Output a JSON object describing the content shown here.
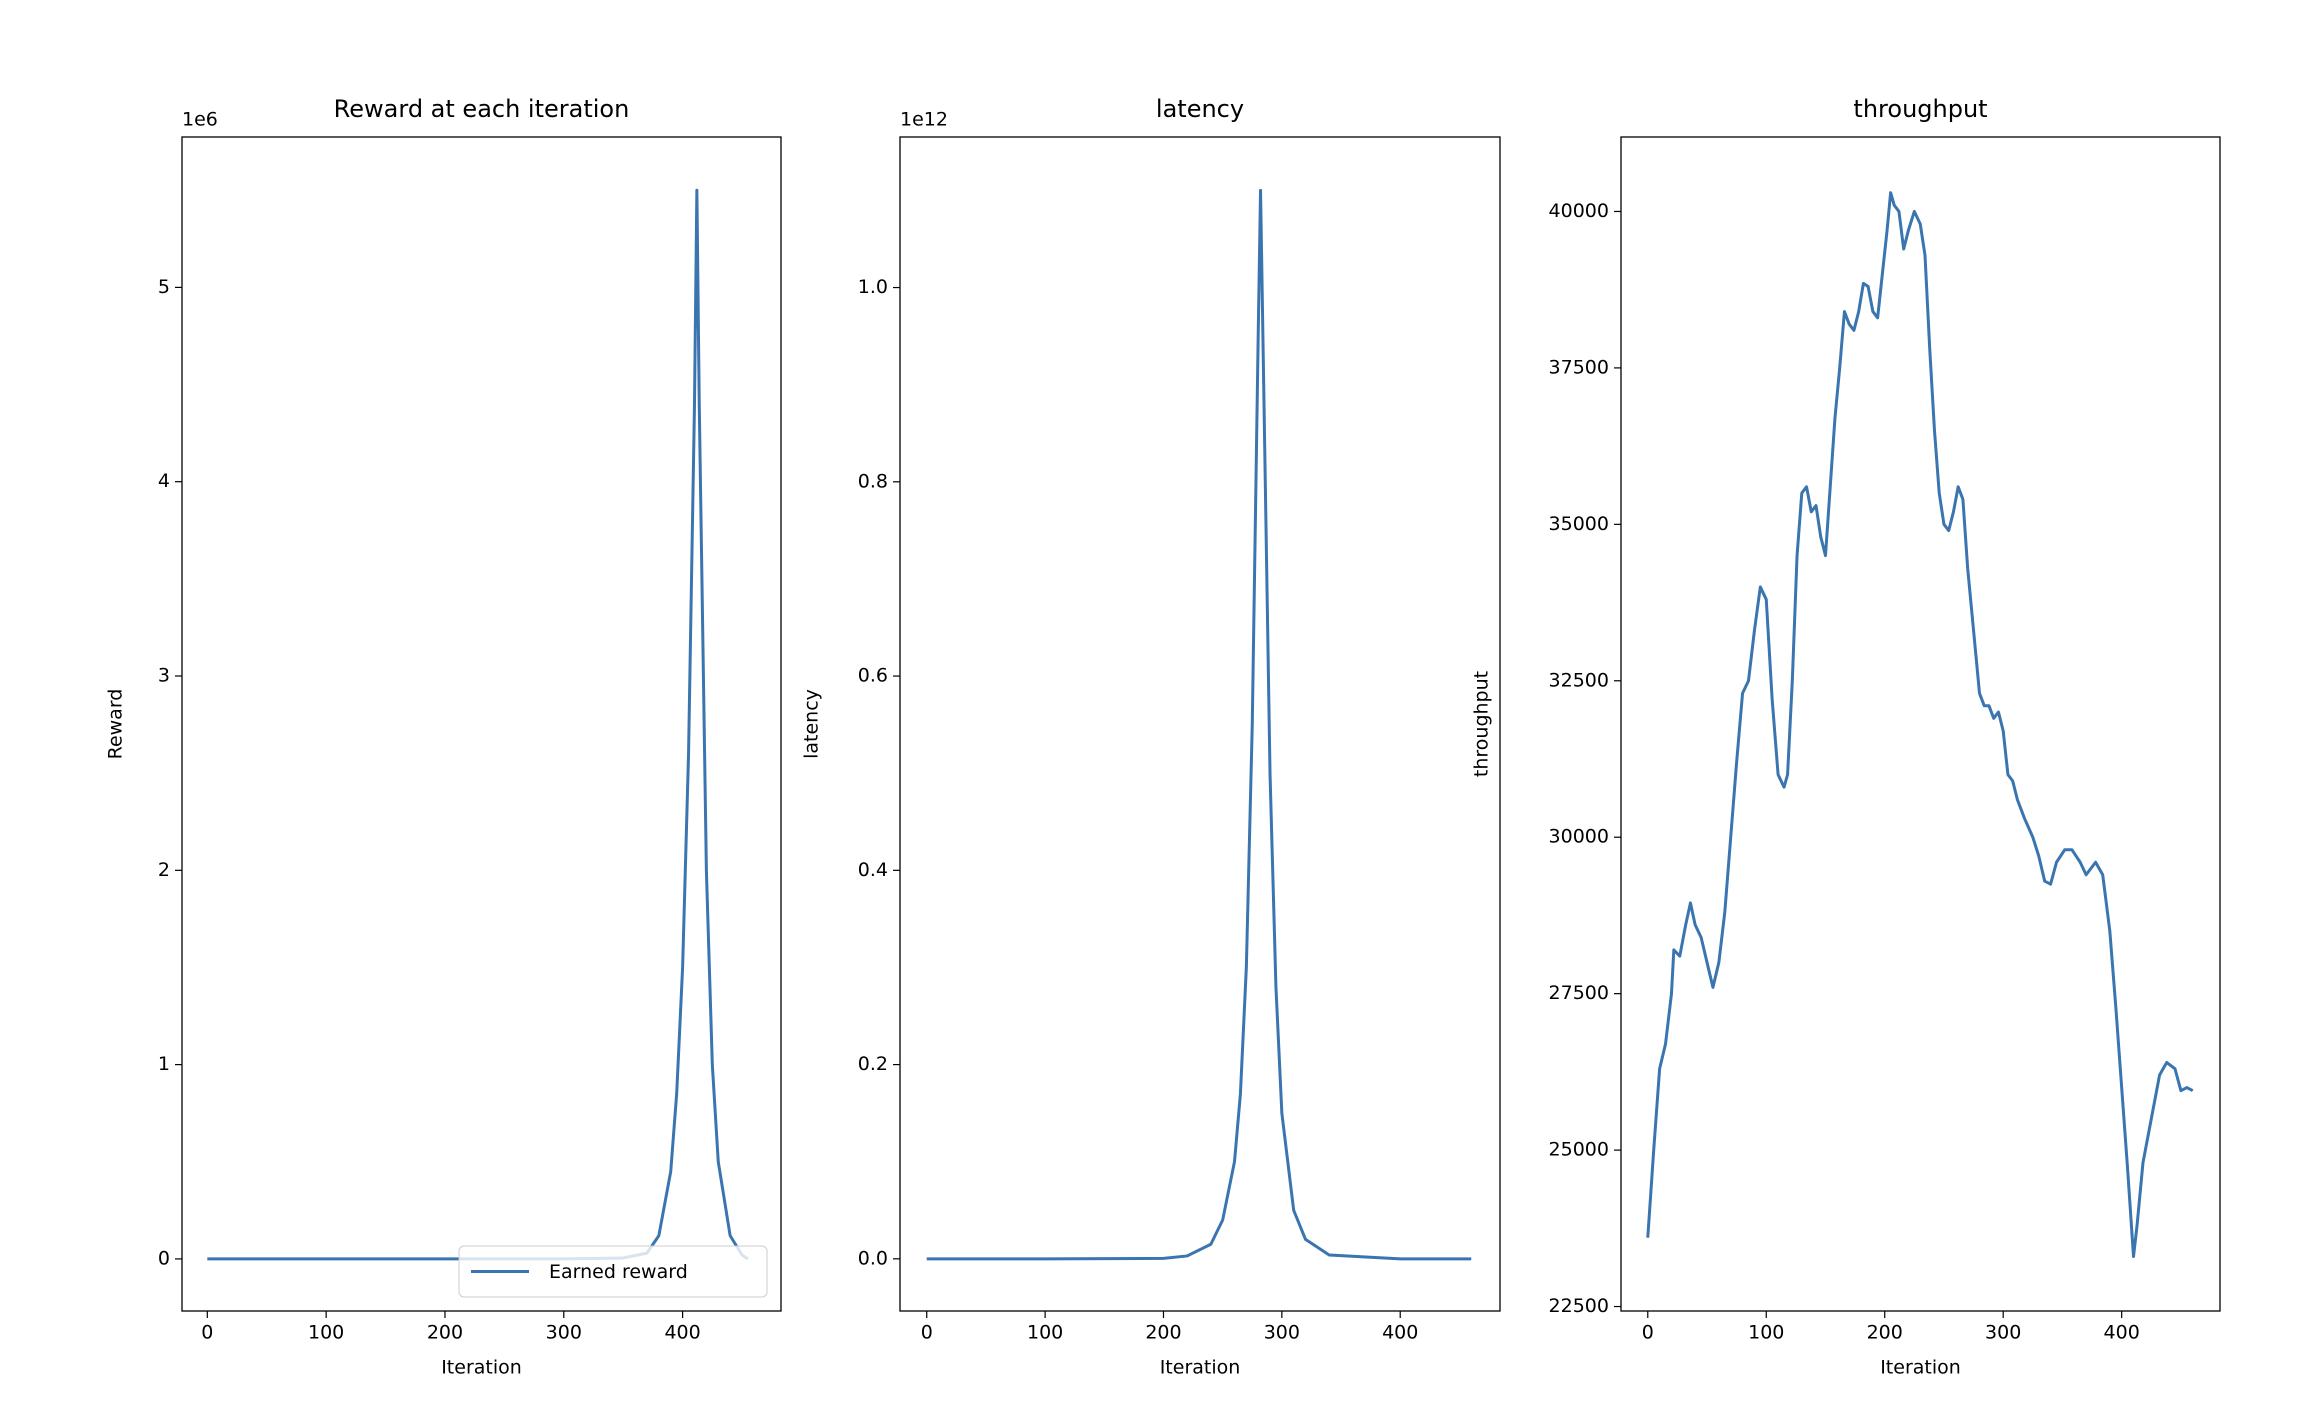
{
  "chart_data": [
    {
      "type": "line",
      "title": "Reward at each iteration",
      "xlabel": "Iteration",
      "ylabel": "Reward",
      "y_offset_label": "1e6",
      "x": [
        0,
        50,
        100,
        150,
        200,
        250,
        300,
        350,
        370,
        380,
        390,
        395,
        400,
        405,
        410,
        412,
        414,
        420,
        425,
        430,
        440,
        450,
        455
      ],
      "series": [
        {
          "name": "Earned reward",
          "color": "#3a75b0",
          "values": [
            0,
            0,
            0,
            0,
            0,
            0,
            0,
            0.005,
            0.03,
            0.12,
            0.45,
            0.85,
            1.5,
            2.6,
            4.4,
            5.5,
            4.4,
            2.0,
            1.0,
            0.5,
            0.12,
            0.02,
            0.0
          ]
        }
      ],
      "xlim": [
        -21.3,
        482.8
      ],
      "xticks": [
        0,
        100,
        200,
        300,
        400
      ],
      "ylim": [
        -0.268,
        5.774
      ],
      "yticks": [
        0,
        1,
        2,
        3,
        4,
        5
      ],
      "legend": "lower right"
    },
    {
      "type": "line",
      "title": "latency",
      "xlabel": "Iteration",
      "ylabel": "latency",
      "y_offset_label": "1e12",
      "color": "#3a75b0",
      "x": [
        0,
        100,
        200,
        220,
        240,
        250,
        260,
        265,
        270,
        275,
        280,
        282,
        284,
        290,
        295,
        300,
        310,
        320,
        340,
        400,
        460
      ],
      "values": [
        0,
        0,
        0.0005,
        0.003,
        0.015,
        0.04,
        0.1,
        0.17,
        0.3,
        0.55,
        0.95,
        1.1,
        0.95,
        0.5,
        0.28,
        0.15,
        0.05,
        0.02,
        0.004,
        0,
        0
      ],
      "xlim": [
        -22.6,
        484.3
      ],
      "xticks": [
        0,
        100,
        200,
        300,
        400
      ],
      "ylim": [
        -0.0537,
        1.155
      ],
      "yticks": [
        {
          "value": 0,
          "label": "0.0"
        },
        {
          "value": 0.2,
          "label": "0.2"
        },
        {
          "value": 0.4,
          "label": "0.4"
        },
        {
          "value": 0.6,
          "label": "0.6"
        },
        {
          "value": 0.8,
          "label": "0.8"
        },
        {
          "value": 1,
          "label": "1.0"
        }
      ]
    },
    {
      "type": "line",
      "title": "throughput",
      "xlabel": "Iteration",
      "ylabel": "throughput",
      "color": "#3a75b0",
      "x": [
        0,
        5,
        10,
        15,
        20,
        22,
        27,
        32,
        36,
        40,
        45,
        50,
        55,
        60,
        65,
        70,
        75,
        80,
        85,
        90,
        95,
        100,
        105,
        110,
        115,
        118,
        122,
        126,
        130,
        134,
        138,
        142,
        146,
        150,
        154,
        158,
        162,
        166,
        170,
        174,
        178,
        182,
        186,
        190,
        194,
        198,
        202,
        205,
        208,
        212,
        216,
        220,
        225,
        230,
        234,
        238,
        242,
        246,
        250,
        254,
        258,
        262,
        266,
        270,
        275,
        280,
        284,
        288,
        292,
        296,
        300,
        304,
        308,
        312,
        318,
        325,
        330,
        335,
        340,
        345,
        352,
        358,
        365,
        370,
        378,
        384,
        390,
        395,
        400,
        405,
        410,
        413,
        418,
        425,
        432,
        438,
        445,
        450,
        455,
        460
      ],
      "values": [
        23600,
        25000,
        26300,
        26700,
        27500,
        28200,
        28100,
        28600,
        28950,
        28600,
        28400,
        28000,
        27600,
        28000,
        28800,
        30000,
        31200,
        32300,
        32500,
        33300,
        34000,
        33800,
        32200,
        31000,
        30800,
        31000,
        32500,
        34500,
        35500,
        35600,
        35200,
        35300,
        34800,
        34500,
        35600,
        36700,
        37500,
        38400,
        38200,
        38100,
        38400,
        38850,
        38800,
        38400,
        38300,
        39000,
        39700,
        40300,
        40100,
        40000,
        39400,
        39700,
        40000,
        39800,
        39300,
        37800,
        36500,
        35500,
        35000,
        34900,
        35200,
        35600,
        35400,
        34300,
        33300,
        32300,
        32100,
        32100,
        31900,
        32000,
        31700,
        31000,
        30900,
        30600,
        30300,
        30000,
        29700,
        29300,
        29250,
        29600,
        29800,
        29800,
        29600,
        29400,
        29600,
        29400,
        28500,
        27300,
        26000,
        24700,
        23300,
        23800,
        24800,
        25500,
        26200,
        26400,
        26300,
        25950,
        26000,
        25950
      ],
      "xlim": [
        -22.6,
        483
      ],
      "xticks": [
        0,
        100,
        200,
        300,
        400
      ],
      "ylim": [
        22428.6,
        41190
      ],
      "yticks": [
        22500,
        25000,
        27500,
        30000,
        32500,
        35000,
        37500,
        40000
      ]
    }
  ]
}
